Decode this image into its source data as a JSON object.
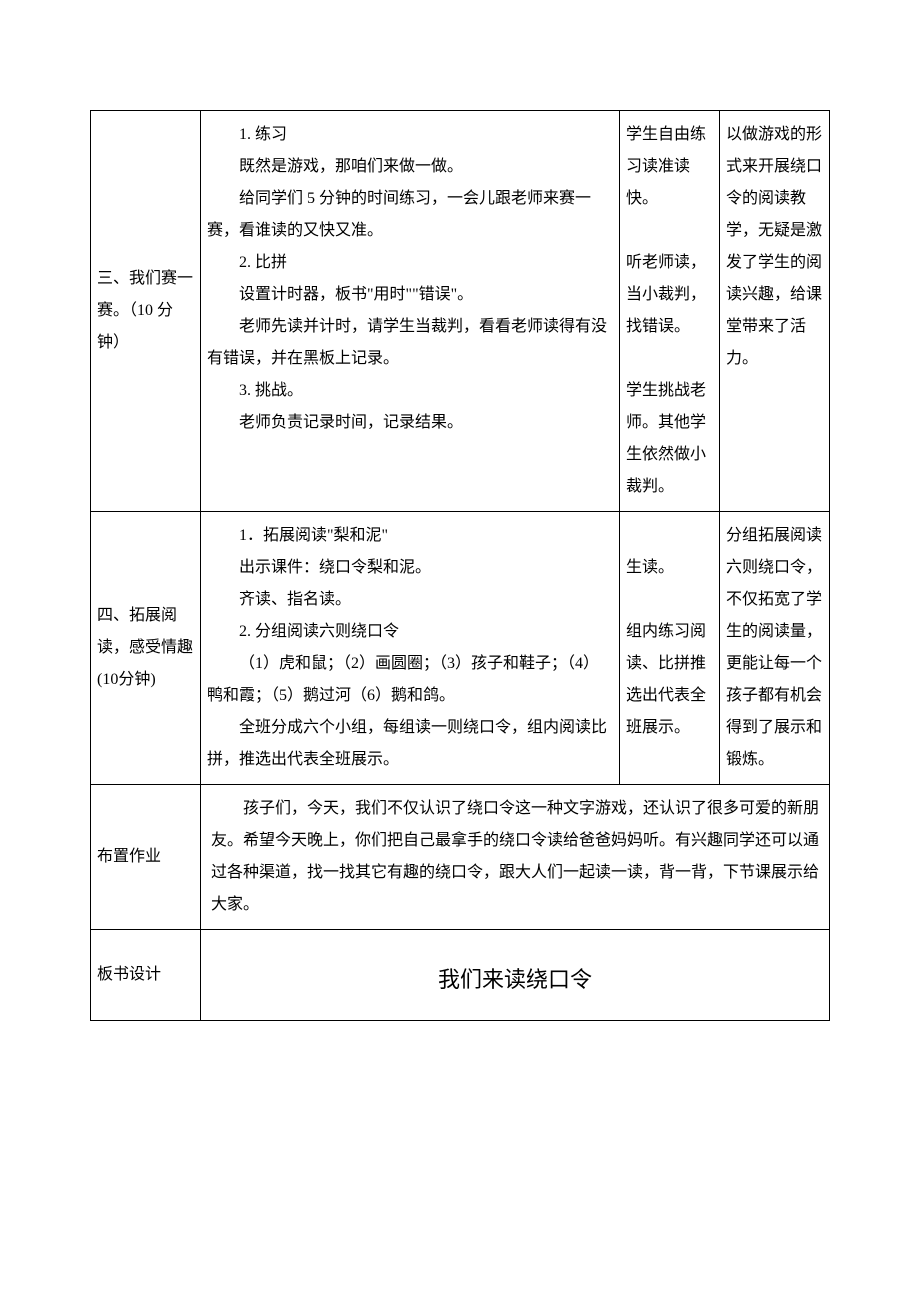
{
  "rows": {
    "r1": {
      "label": "三、我们赛一赛。（10 分钟）",
      "content": {
        "p1": "1. 练习",
        "p2": "既然是游戏，那咱们来做一做。",
        "p3": "给同学们 5 分钟的时间练习，一会儿跟老师来赛一赛，看谁读的又快又准。",
        "p4": "2. 比拼",
        "p5": "设置计时器，板书\"用时\"\"错误\"。",
        "p6": "老师先读并计时，请学生当裁判，看看老师读得有没有错误，并在黑板上记录。",
        "p7": "3. 挑战。",
        "p8": "老师负责记录时间，记录结果。"
      },
      "student": {
        "s1": "学生自由练习读准读快。",
        "s2": "听老师读，当小裁判，找错误。",
        "s3": "学生挑战老师。其他学生依然做小裁判。"
      },
      "comment": "以做游戏的形式来开展绕口令的阅读教学，无疑是激发了学生的阅读兴趣，给课堂带来了活力。"
    },
    "r2": {
      "label": "四、拓展阅读，感受情趣(10分钟)",
      "content": {
        "p1": "1．拓展阅读\"梨和泥\"",
        "p2": "出示课件：绕口令梨和泥。",
        "p3": "齐读、指名读。",
        "p4": "2. 分组阅读六则绕口令",
        "p5": "（1）虎和鼠；（2）画圆圈；（3）孩子和鞋子；（4）鸭和霞；（5）鹅过河（6）鹅和鸽。",
        "p6": "全班分成六个小组，每组读一则绕口令，组内阅读比拼，推选出代表全班展示。"
      },
      "student": {
        "s1": "生读。",
        "s2": "组内练习阅读、比拼推选出代表全班展示。"
      },
      "comment": "分组拓展阅读六则绕口令，不仅拓宽了学生的阅读量，更能让每一个孩子都有机会得到了展示和锻炼。"
    },
    "r3": {
      "label": "布置作业",
      "content": "孩子们，今天，我们不仅认识了绕口令这一种文字游戏，还认识了很多可爱的新朋友。希望今天晚上，你们把自己最拿手的绕口令读给爸爸妈妈听。有兴趣同学还可以通过各种渠道，找一找其它有趣的绕口令，跟大人们一起读一读，背一背，下节课展示给大家。"
    },
    "r4": {
      "label": "板书设计",
      "title": "我们来读绕口令"
    }
  }
}
